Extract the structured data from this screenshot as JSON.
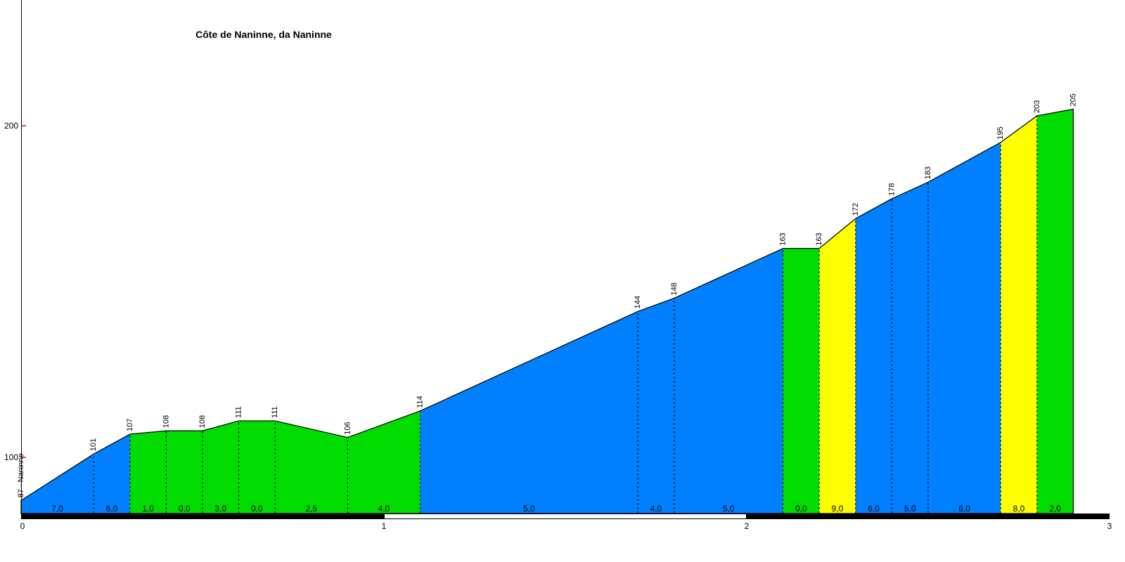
{
  "title": "Côte de Naninne, da Naninne",
  "chart_data": {
    "type": "area",
    "title": "Côte de Naninne, da Naninne",
    "xlabel": "",
    "ylabel": "",
    "xlim_km": [
      0,
      3
    ],
    "y_ticks": [
      {
        "value": 100,
        "label": "100"
      },
      {
        "value": 200,
        "label": "200"
      }
    ],
    "x_ticks": [
      {
        "km": 0,
        "label": "0"
      },
      {
        "km": 1,
        "label": "1"
      },
      {
        "km": 2,
        "label": "2"
      },
      {
        "km": 3,
        "label": "3"
      }
    ],
    "points": [
      {
        "km": 0.0,
        "elevation": 87,
        "label": "87 - Naninne"
      },
      {
        "km": 0.2,
        "elevation": 101,
        "label": "101"
      },
      {
        "km": 0.3,
        "elevation": 107,
        "label": "107"
      },
      {
        "km": 0.4,
        "elevation": 108,
        "label": "108"
      },
      {
        "km": 0.5,
        "elevation": 108,
        "label": "108"
      },
      {
        "km": 0.6,
        "elevation": 111,
        "label": "111"
      },
      {
        "km": 0.7,
        "elevation": 111,
        "label": "111"
      },
      {
        "km": 0.9,
        "elevation": 106,
        "label": "106"
      },
      {
        "km": 1.1,
        "elevation": 114,
        "label": "114"
      },
      {
        "km": 1.7,
        "elevation": 144,
        "label": "144"
      },
      {
        "km": 1.8,
        "elevation": 148,
        "label": "148"
      },
      {
        "km": 2.1,
        "elevation": 163,
        "label": "163"
      },
      {
        "km": 2.2,
        "elevation": 163,
        "label": "163"
      },
      {
        "km": 2.3,
        "elevation": 172,
        "label": "172"
      },
      {
        "km": 2.4,
        "elevation": 178,
        "label": "178"
      },
      {
        "km": 2.5,
        "elevation": 183,
        "label": "183"
      },
      {
        "km": 2.7,
        "elevation": 195,
        "label": "195"
      },
      {
        "km": 2.8,
        "elevation": 203,
        "label": "203"
      },
      {
        "km": 2.9,
        "elevation": 205,
        "label": "205"
      }
    ],
    "segments": [
      {
        "from_km": 0.0,
        "to_km": 0.2,
        "gradient": "7,0",
        "color": "blue"
      },
      {
        "from_km": 0.2,
        "to_km": 0.3,
        "gradient": "6,0",
        "color": "blue"
      },
      {
        "from_km": 0.3,
        "to_km": 0.4,
        "gradient": "1,0",
        "color": "green"
      },
      {
        "from_km": 0.4,
        "to_km": 0.5,
        "gradient": "0,0",
        "color": "green"
      },
      {
        "from_km": 0.5,
        "to_km": 0.6,
        "gradient": "3,0",
        "color": "green"
      },
      {
        "from_km": 0.6,
        "to_km": 0.7,
        "gradient": "0,0",
        "color": "green"
      },
      {
        "from_km": 0.7,
        "to_km": 0.9,
        "gradient": "2,5",
        "color": "green"
      },
      {
        "from_km": 0.9,
        "to_km": 1.1,
        "gradient": "4,0",
        "color": "green"
      },
      {
        "from_km": 1.1,
        "to_km": 1.7,
        "gradient": "5,0",
        "color": "blue"
      },
      {
        "from_km": 1.7,
        "to_km": 1.8,
        "gradient": "4,0",
        "color": "blue"
      },
      {
        "from_km": 1.8,
        "to_km": 2.1,
        "gradient": "5,0",
        "color": "blue"
      },
      {
        "from_km": 2.1,
        "to_km": 2.2,
        "gradient": "0,0",
        "color": "green"
      },
      {
        "from_km": 2.2,
        "to_km": 2.3,
        "gradient": "9,0",
        "color": "yellow"
      },
      {
        "from_km": 2.3,
        "to_km": 2.4,
        "gradient": "6,0",
        "color": "blue"
      },
      {
        "from_km": 2.4,
        "to_km": 2.5,
        "gradient": "5,0",
        "color": "blue"
      },
      {
        "from_km": 2.5,
        "to_km": 2.7,
        "gradient": "6,0",
        "color": "blue"
      },
      {
        "from_km": 2.7,
        "to_km": 2.8,
        "gradient": "8,0",
        "color": "yellow"
      },
      {
        "from_km": 2.8,
        "to_km": 2.9,
        "gradient": "2,0",
        "color": "green"
      }
    ],
    "colors": {
      "blue": "#0080ff",
      "green": "#00dc00",
      "yellow": "#ffff00",
      "outline": "#000000",
      "tick": "#cc0000",
      "bar_black": "#000000",
      "bar_white": "#ffffff"
    },
    "km_bar": [
      {
        "from_km": 0,
        "to_km": 1,
        "fill": "black"
      },
      {
        "from_km": 1,
        "to_km": 2,
        "fill": "white"
      },
      {
        "from_km": 2,
        "to_km": 3,
        "fill": "black"
      }
    ],
    "legend": "none",
    "grid": "off"
  }
}
